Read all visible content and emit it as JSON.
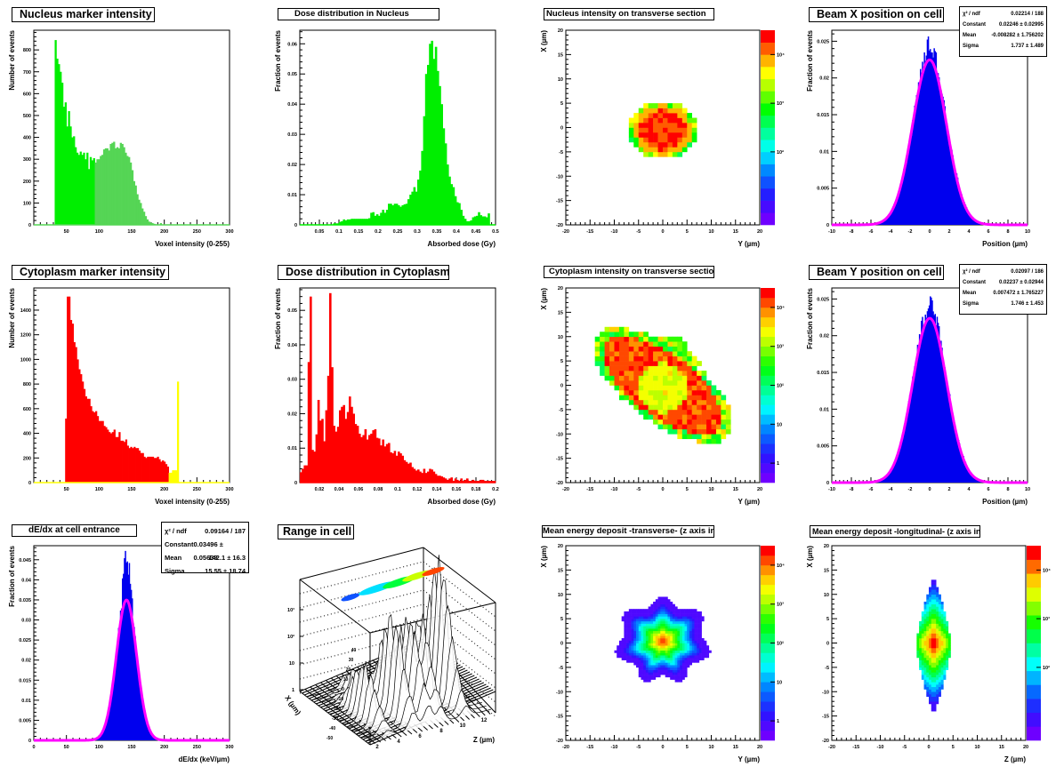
{
  "chart_data": [
    {
      "id": "nucleus-intensity",
      "type": "bar",
      "title": "Nucleus marker intensity",
      "xlabel": "Voxel intensity (0-255)",
      "ylabel": "Number of events",
      "xlim": [
        0,
        300
      ],
      "ylim": [
        0,
        890
      ],
      "xticks": [
        50,
        100,
        150,
        200,
        250,
        300
      ],
      "yticks": [
        0,
        100,
        200,
        300,
        400,
        500,
        600,
        700,
        800
      ],
      "bin_start": 32,
      "bin_width": 2.56,
      "series": [
        {
          "name": "low",
          "color": "#00ee00",
          "values": [
            845,
            760,
            735,
            700,
            650,
            540,
            560,
            450,
            520,
            450,
            400,
            405,
            355,
            330,
            320,
            335,
            320,
            330,
            300,
            330,
            255,
            310,
            295,
            305
          ]
        },
        {
          "name": "high",
          "color": "#55d555",
          "values": [
            285,
            300,
            300,
            315,
            320,
            345,
            350,
            350,
            340,
            370,
            375,
            380,
            350,
            355,
            350,
            375,
            370,
            355,
            330,
            315,
            310,
            285,
            250,
            200,
            180,
            140,
            115,
            100,
            75,
            60,
            40,
            25,
            15,
            10,
            8,
            5,
            3,
            0,
            0,
            8,
            0
          ]
        }
      ]
    },
    {
      "id": "nucleus-dose",
      "type": "bar",
      "title": "Dose distribution in Nucleus",
      "xlabel": "Absorbed dose (Gy)",
      "ylabel": "Fraction of events",
      "xlim": [
        0,
        0.5
      ],
      "ylim": [
        0,
        0.0645
      ],
      "xticks": [
        0.05,
        0.1,
        0.15,
        0.2,
        0.25,
        0.3,
        0.35,
        0.4,
        0.45,
        0.5
      ],
      "yticks": [
        0,
        0.01,
        0.02,
        0.03,
        0.04,
        0.05,
        0.06
      ],
      "color": "#00ee00",
      "bin_start": 0,
      "bin_width": 0.005,
      "values": [
        0,
        0,
        0,
        0,
        0,
        0,
        0,
        0,
        0,
        0,
        0,
        0,
        0,
        0,
        0,
        0,
        0,
        0.0005,
        0.0005,
        0.0005,
        0.001,
        0.0012,
        0.0018,
        0.0015,
        0.0018,
        0.0018,
        0.002,
        0.002,
        0.002,
        0.002,
        0.002,
        0.002,
        0.002,
        0.002,
        0.002,
        0.0022,
        0.004,
        0.0042,
        0.003,
        0.0035,
        0.003,
        0.004,
        0.005,
        0.004,
        0.005,
        0.007,
        0.007,
        0.0065,
        0.007,
        0.007,
        0.0065,
        0.006,
        0.0065,
        0.0068,
        0.007,
        0.0085,
        0.01,
        0.011,
        0.0125,
        0.011,
        0.015,
        0.018,
        0.0245,
        0.036,
        0.05,
        0.053,
        0.06,
        0.061,
        0.055,
        0.059,
        0.051,
        0.046,
        0.04,
        0.032,
        0.027,
        0.02,
        0.016,
        0.0135,
        0.0125,
        0.0095,
        0.0075,
        0.0072,
        0.005,
        0.003,
        0.002,
        0.0012,
        0.0012,
        0.0015,
        0.0025,
        0.0028,
        0.003,
        0.0042,
        0.0032,
        0.0028,
        0.0028,
        0.0025,
        0.0038,
        0,
        0,
        0
      ]
    },
    {
      "id": "nucleus-transverse",
      "type": "heatmap",
      "title": "Nucleus intensity on transverse section",
      "xlabel": "Y (µm)",
      "ylabel": "X (µm)",
      "xlim": [
        -20,
        20
      ],
      "ylim": [
        -20,
        20
      ],
      "ticks": [
        -20,
        -15,
        -10,
        -5,
        0,
        5,
        10,
        15,
        20
      ],
      "zscale": "log",
      "zticks": [
        "10²",
        "10³",
        "10⁴"
      ],
      "shape": "ellipse",
      "center": [
        0,
        -0.5
      ],
      "radii": [
        7,
        6
      ],
      "palette_steps": 16
    },
    {
      "id": "beam-x",
      "type": "bar",
      "title": "Beam X position on cell",
      "xlabel": "Position (µm)",
      "ylabel": "Fraction of events",
      "xlim": [
        -10,
        10
      ],
      "ylim": [
        0,
        0.0265
      ],
      "xticks": [
        -10,
        -8,
        -6,
        -4,
        -2,
        0,
        2,
        4,
        6,
        8,
        10
      ],
      "yticks": [
        0,
        0.005,
        0.01,
        0.015,
        0.02,
        0.025
      ],
      "color": "#0000ee",
      "fit_color": "#ff00ff",
      "fit": {
        "constant": 0.02246,
        "mean": -0.008282,
        "sigma": 1.737
      },
      "peak": 0.0245,
      "stats": [
        {
          "label": "χ² / ndf",
          "value": "0.02214 / 188"
        },
        {
          "label": "Constant",
          "value": "0.02246 ± 0.02995"
        },
        {
          "label": "Mean",
          "value": "-0.008282 ± 1.756202"
        },
        {
          "label": "Sigma",
          "value": "1.737 ± 1.489"
        }
      ]
    },
    {
      "id": "cytoplasm-intensity",
      "type": "bar",
      "title": "Cytoplasm marker intensity",
      "xlabel": "Voxel intensity (0-255)",
      "ylabel": "Number of events",
      "xlim": [
        0,
        300
      ],
      "ylim": [
        0,
        1580
      ],
      "xticks": [
        50,
        100,
        150,
        200,
        250,
        300
      ],
      "yticks": [
        0,
        200,
        400,
        600,
        800,
        1000,
        1200,
        1400
      ],
      "bin_start": 48,
      "bin_width": 2.56,
      "series": [
        {
          "name": "main",
          "color": "#ff0000",
          "values": [
            520,
            1510,
            1510,
            1320,
            1290,
            1140,
            1100,
            1000,
            920,
            880,
            820,
            760,
            700,
            680,
            680,
            620,
            580,
            570,
            580,
            540,
            500,
            500,
            500,
            460,
            450,
            430,
            410,
            400,
            410,
            430,
            370,
            370,
            410,
            340,
            340,
            330,
            350,
            300,
            280,
            290,
            280,
            290,
            280,
            280,
            260,
            240,
            240,
            210,
            200,
            210,
            210,
            210,
            210,
            200,
            200,
            210,
            190,
            170,
            180,
            170,
            150,
            130
          ]
        },
        {
          "name": "saturated",
          "color": "#ffff00",
          "values": [
            80,
            80,
            100,
            100,
            100,
            820
          ]
        }
      ]
    },
    {
      "id": "cytoplasm-dose",
      "type": "bar",
      "title": "Dose distribution in Cytoplasm",
      "xlabel": "Absorbed dose (Gy)",
      "ylabel": "Fraction of events",
      "xlim": [
        0,
        0.2
      ],
      "ylim": [
        0,
        0.0565
      ],
      "xticks": [
        0.02,
        0.04,
        0.06,
        0.08,
        0.1,
        0.12,
        0.14,
        0.16,
        0.18,
        0.2
      ],
      "yticks": [
        0,
        0.01,
        0.02,
        0.03,
        0.04,
        0.05
      ],
      "color": "#ff0000",
      "bin_start": 0,
      "bin_width": 0.002,
      "values": [
        0.003,
        0.004,
        0.005,
        0.005,
        0.035,
        0.054,
        0.0095,
        0.009,
        0.014,
        0.024,
        0.018,
        0.0185,
        0.012,
        0.021,
        0.031,
        0.055,
        0.0335,
        0.0165,
        0.0148,
        0.0162,
        0.021,
        0.022,
        0.0225,
        0.0185,
        0.0205,
        0.025,
        0.022,
        0.02,
        0.017,
        0.0165,
        0.0142,
        0.0132,
        0.0138,
        0.0155,
        0.0125,
        0.0138,
        0.0142,
        0.0152,
        0.0155,
        0.013,
        0.0128,
        0.0108,
        0.0125,
        0.0105,
        0.0112,
        0.0115,
        0.0088,
        0.0085,
        0.0092,
        0.0078,
        0.009,
        0.0085,
        0.0078,
        0.0065,
        0.006,
        0.0055,
        0.0058,
        0.0045,
        0.004,
        0.0035,
        0.0038,
        0.0032,
        0.0028,
        0.004,
        0.0028,
        0.0032,
        0.004,
        0.0038,
        0.0032,
        0.0025,
        0.002,
        0.002,
        0.0018,
        0.0015,
        0.0012,
        0.0008,
        0.0012,
        0.0015,
        0.0005,
        0.0012,
        0.0008,
        0.0005,
        0.0012,
        0.0005,
        0.0008,
        0.0012,
        0.0005,
        0.0005,
        0.0008,
        0.0005,
        0.0005,
        0.0005,
        0.0008,
        0.0008,
        0.0005,
        0.0005,
        0.0005,
        0.0005,
        0.0005,
        0.0005
      ]
    },
    {
      "id": "cytoplasm-transverse",
      "type": "heatmap",
      "title": "Cytoplasm intensity on transverse section",
      "xlabel": "Y (µm)",
      "ylabel": "X (µm)",
      "xlim": [
        -20,
        20
      ],
      "ylim": [
        -20,
        20
      ],
      "ticks": [
        -20,
        -15,
        -10,
        -5,
        0,
        5,
        10,
        15,
        20
      ],
      "zscale": "log",
      "zticks": [
        "1",
        "10",
        "10²",
        "10³",
        "10⁴"
      ],
      "shape": "tilted-ring",
      "palette_steps": 20
    },
    {
      "id": "beam-y",
      "type": "bar",
      "title": "Beam Y position on cell",
      "xlabel": "Position (µm)",
      "ylabel": "Fraction of events",
      "xlim": [
        -10,
        10
      ],
      "ylim": [
        0,
        0.0265
      ],
      "xticks": [
        -10,
        -8,
        -6,
        -4,
        -2,
        0,
        2,
        4,
        6,
        8,
        10
      ],
      "yticks": [
        0,
        0.005,
        0.01,
        0.015,
        0.02,
        0.025
      ],
      "color": "#0000ee",
      "fit_color": "#ff00ff",
      "fit": {
        "constant": 0.02237,
        "mean": 0.007472,
        "sigma": 1.746
      },
      "peak": 0.0243,
      "stats": [
        {
          "label": "χ² / ndf",
          "value": "0.02097 / 186"
        },
        {
          "label": "Constant",
          "value": "0.02237 ± 0.02944"
        },
        {
          "label": "Mean",
          "value": "0.007472 ± 1.765227"
        },
        {
          "label": "Sigma",
          "value": "1.746 ± 1.453"
        }
      ]
    },
    {
      "id": "dedx",
      "type": "bar",
      "title": "dE/dx at cell entrance",
      "xlabel": "dE/dx (keV/µm)",
      "ylabel": "Fraction of events",
      "xlim": [
        0,
        300
      ],
      "ylim": [
        0,
        0.0485
      ],
      "xticks": [
        0,
        50,
        100,
        150,
        200,
        250,
        300
      ],
      "yticks": [
        0,
        0.005,
        0.01,
        0.015,
        0.02,
        0.025,
        0.03,
        0.035,
        0.04,
        0.045
      ],
      "color": "#0000ee",
      "fit_color": "#ff00ff",
      "fit": {
        "constant": 0.03496,
        "mean": 142.1,
        "sigma": 15.55
      },
      "peak": 0.045,
      "stats": [
        {
          "label": "χ² / ndf",
          "value": "0.09164 / 187"
        },
        {
          "label": "Constant",
          "value": "0.03496 ± 0.05638"
        },
        {
          "label": "Mean",
          "value": "142.1 ± 16.3"
        },
        {
          "label": "Sigma",
          "value": "15.55 ± 18.74"
        }
      ]
    },
    {
      "id": "range-in-cell",
      "type": "lego-3d",
      "title": "Range in cell",
      "xlabel": "X (µm)",
      "zlabel": "Z (µm)",
      "xticks": [
        -50,
        -40,
        -30,
        -20,
        -10,
        0,
        10,
        20,
        30,
        40
      ],
      "zticks": [
        2,
        4,
        6,
        8,
        10,
        12
      ],
      "vticks": [
        "1",
        "10",
        "10²",
        "10³"
      ],
      "zscale": "log"
    },
    {
      "id": "energy-transverse",
      "type": "heatmap",
      "title": "Mean energy deposit -transverse- (z axis in eV)",
      "xlabel": "Y (µm)",
      "ylabel": "X (µm)",
      "xlim": [
        -20,
        20
      ],
      "ylim": [
        -20,
        20
      ],
      "ticks": [
        -20,
        -15,
        -10,
        -5,
        0,
        5,
        10,
        15,
        20
      ],
      "zscale": "log",
      "zticks": [
        "1",
        "10",
        "10²",
        "10³",
        "10⁴"
      ],
      "shape": "contour-blob",
      "center": [
        0,
        0.5
      ],
      "radii": [
        9,
        8
      ],
      "palette_steps": 20
    },
    {
      "id": "energy-longitudinal",
      "type": "heatmap",
      "title": "Mean energy deposit -longitudinal- (z axis in eV)",
      "xlabel": "Z (µm)",
      "ylabel": "X (µm)",
      "xlim": [
        -20,
        20
      ],
      "ylim": [
        -20,
        20
      ],
      "ticks": [
        -20,
        -15,
        -10,
        -5,
        0,
        5,
        10,
        15,
        20
      ],
      "zscale": "log",
      "zticks": [
        "10²",
        "10³",
        "10⁴"
      ],
      "shape": "contour-spindle",
      "center": [
        1,
        -0.5
      ],
      "radii": [
        3.5,
        14
      ],
      "palette_steps": 14
    }
  ]
}
